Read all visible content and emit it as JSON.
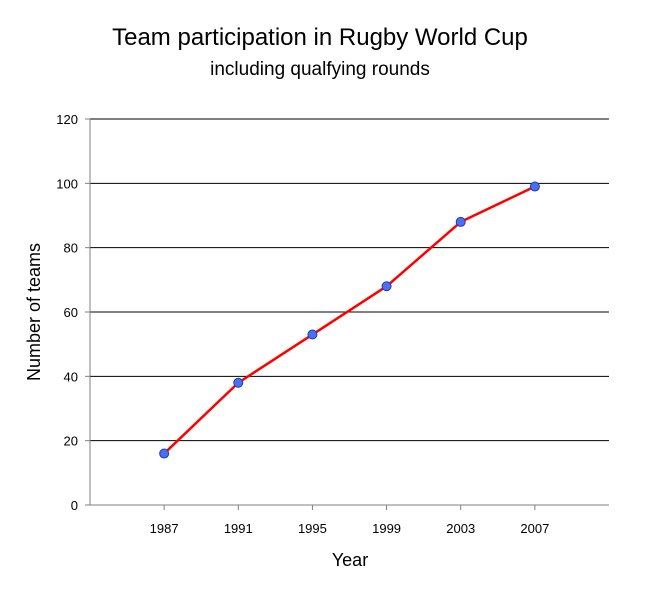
{
  "chart_data": {
    "type": "line",
    "title": "Team participation in Rugby World Cup",
    "subtitle": "including qualfying rounds",
    "xlabel": "Year",
    "ylabel": "Number of teams",
    "categories": [
      "1987",
      "1991",
      "1995",
      "1999",
      "2003",
      "2007"
    ],
    "series": [
      {
        "values": [
          16,
          38,
          53,
          68,
          88,
          99
        ]
      }
    ],
    "ylim": [
      0,
      120
    ],
    "yticks": [
      "0",
      "20",
      "40",
      "60",
      "80",
      "100",
      "120"
    ],
    "grid": "horizontal",
    "legend": "none",
    "colors": {
      "line": "#ff0000",
      "marker": "#4a6ff0",
      "marker_edge": "#1f3da8",
      "grid": "#000000",
      "axis": "#7f7f7f"
    }
  }
}
